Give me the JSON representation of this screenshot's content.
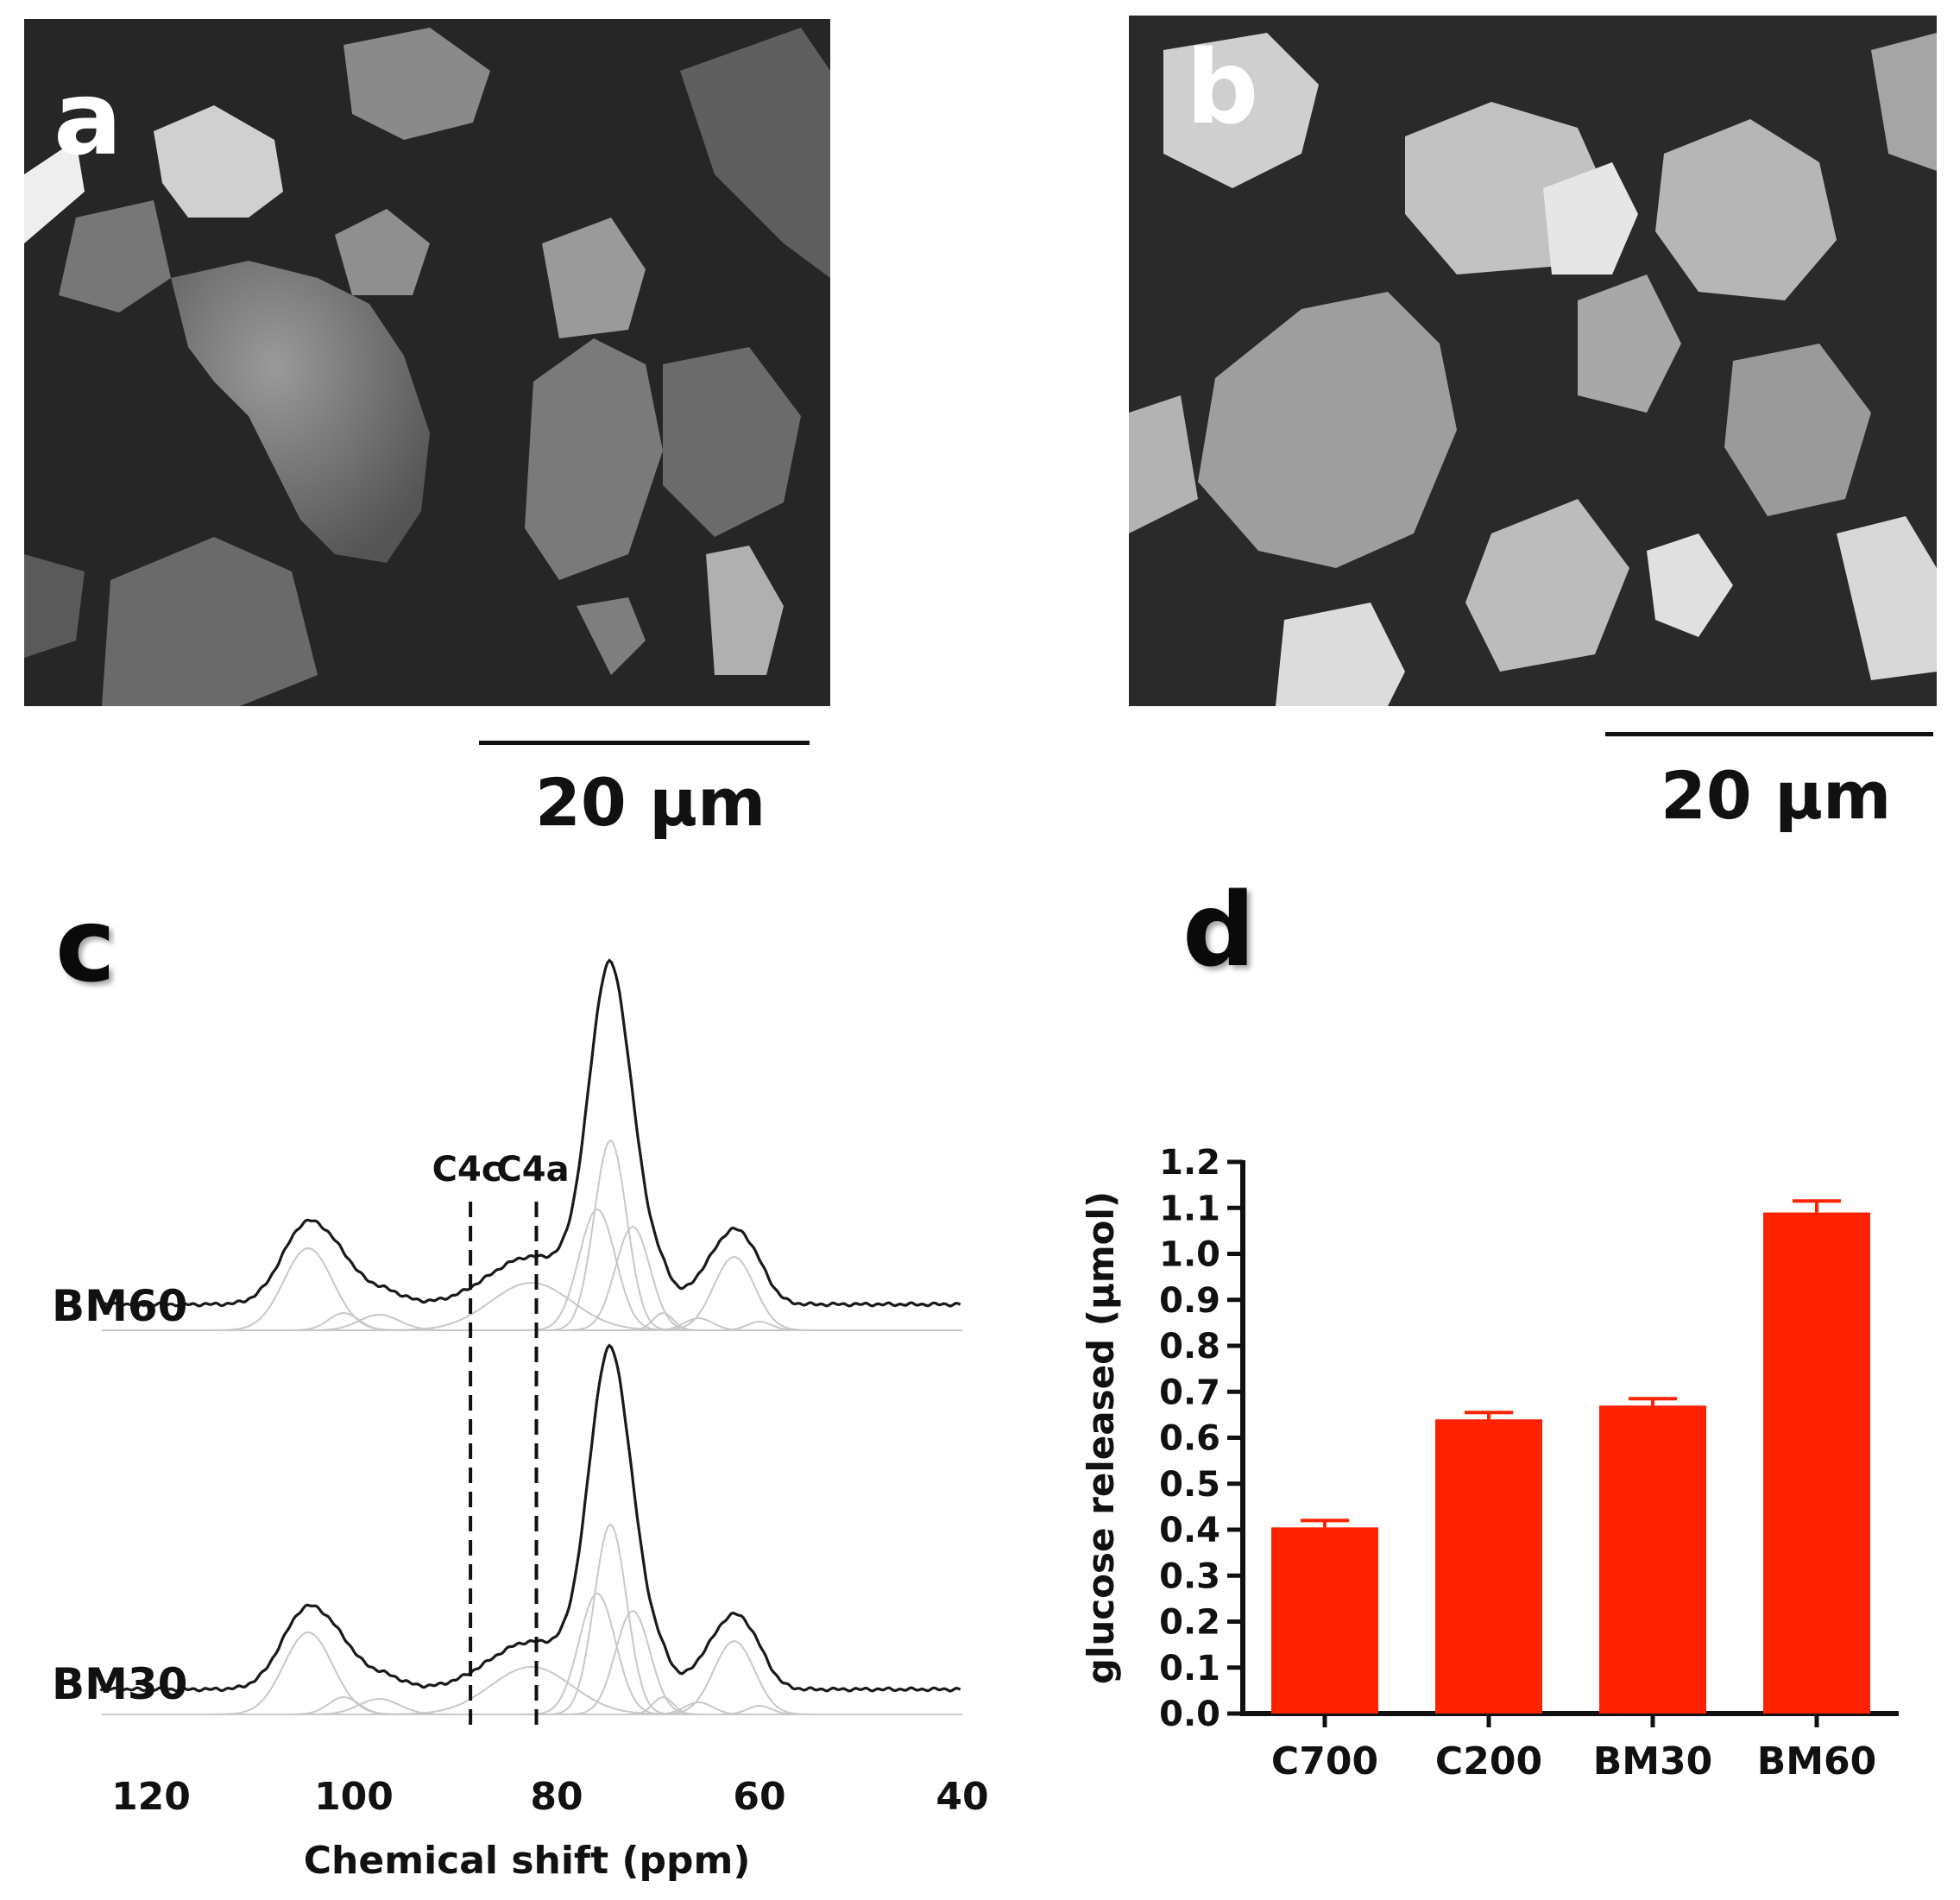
{
  "panels": {
    "a": {
      "letter": "a",
      "scale_bar": "20 μm"
    },
    "b": {
      "letter": "b",
      "scale_bar": "20 μm"
    },
    "c": {
      "letter": "c"
    },
    "d": {
      "letter": "d"
    }
  },
  "chart_data": [
    {
      "type": "line",
      "panel": "c",
      "xlabel": "Chemical shift (ppm)",
      "xlim": [
        125,
        40
      ],
      "x_ticks": [
        120,
        100,
        80,
        60,
        40
      ],
      "series": [
        {
          "name": "BM60",
          "peaks_ppm": [
            104.5,
            101,
            97.5,
            82.5,
            76,
            74.7,
            72.5,
            69.5,
            66,
            62.5,
            60
          ]
        },
        {
          "name": "BM30",
          "peaks_ppm": [
            104.5,
            101,
            97.5,
            82.5,
            76,
            74.7,
            72.5,
            69.5,
            66,
            62.5,
            60
          ]
        }
      ],
      "annotations": [
        {
          "text": "C4c",
          "x": 88.5
        },
        {
          "text": "C4a",
          "x": 82
        }
      ],
      "colors": {
        "envelope": "#1a1a1a",
        "components": "#c8c8c8"
      }
    },
    {
      "type": "bar",
      "panel": "d",
      "categories": [
        "C700",
        "C200",
        "BM30",
        "BM60"
      ],
      "values": [
        0.405,
        0.64,
        0.67,
        1.09
      ],
      "errors": [
        0.015,
        0.015,
        0.015,
        0.025
      ],
      "ylabel": "glucose released (μmol)",
      "ylim": [
        0,
        1.2
      ],
      "y_ticks": [
        "0.0",
        "0.1",
        "0.2",
        "0.3",
        "0.4",
        "0.5",
        "0.6",
        "0.7",
        "0.8",
        "0.9",
        "1.0",
        "1.1",
        "1.2"
      ],
      "color": "#ff2200"
    }
  ]
}
